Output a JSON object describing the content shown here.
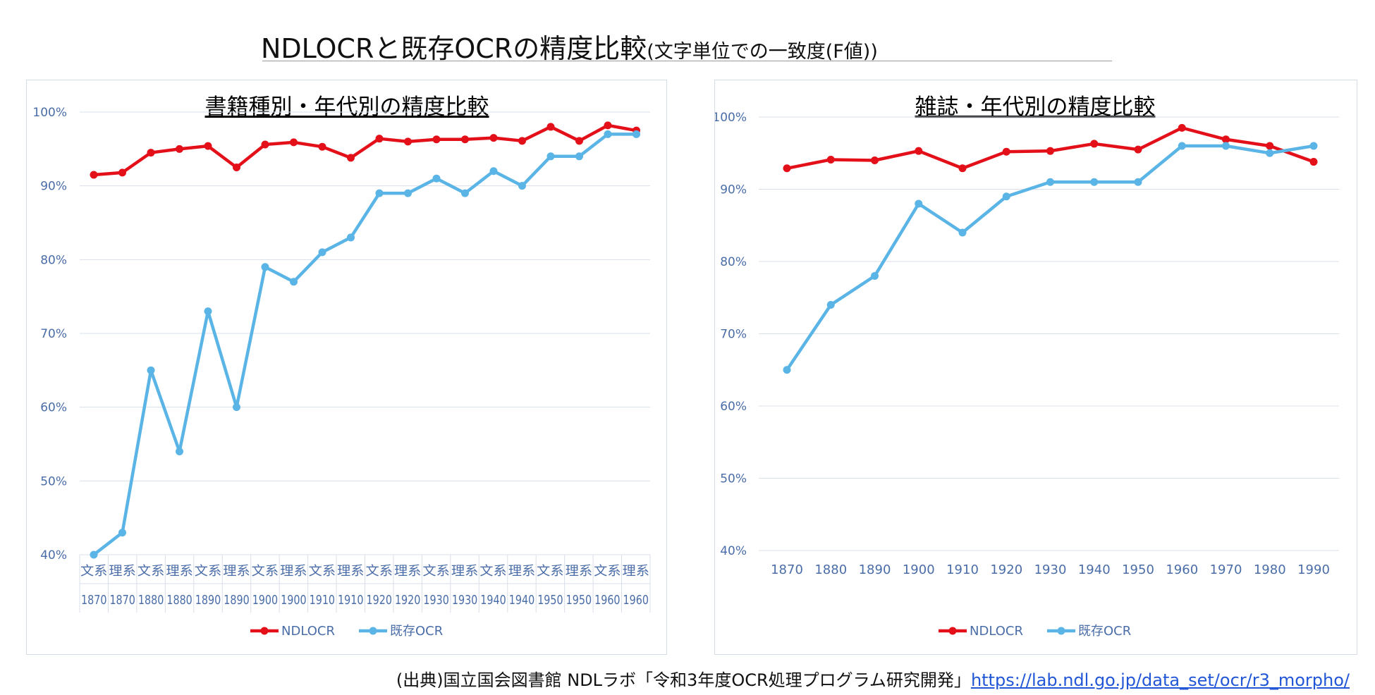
{
  "header": {
    "title_main": "NDLOCRと既存OCRの精度比較",
    "title_sub": "(文字単位での一致度(F値))"
  },
  "source": {
    "prefix": "(出典)国立国会図書館 NDLラボ「令和3年度OCR処理プログラム研究開発」",
    "link": "https://lab.ndl.go.jp/data_set/ocr/r3_morpho/"
  },
  "colors": {
    "ndlocr": "#e3101a",
    "existing": "#5ab4e5",
    "axis_text": "#4a6da8",
    "grid": "#d9dfe8"
  },
  "chart_data": [
    {
      "type": "line",
      "title": "書籍種別・年代別の精度比較",
      "categories": [
        [
          "文系",
          "1870"
        ],
        [
          "理系",
          "1870"
        ],
        [
          "文系",
          "1880"
        ],
        [
          "理系",
          "1880"
        ],
        [
          "文系",
          "1890"
        ],
        [
          "理系",
          "1890"
        ],
        [
          "文系",
          "1900"
        ],
        [
          "理系",
          "1900"
        ],
        [
          "文系",
          "1910"
        ],
        [
          "理系",
          "1910"
        ],
        [
          "文系",
          "1920"
        ],
        [
          "理系",
          "1920"
        ],
        [
          "文系",
          "1930"
        ],
        [
          "理系",
          "1930"
        ],
        [
          "文系",
          "1940"
        ],
        [
          "理系",
          "1940"
        ],
        [
          "文系",
          "1950"
        ],
        [
          "理系",
          "1950"
        ],
        [
          "文系",
          "1960"
        ],
        [
          "理系",
          "1960"
        ]
      ],
      "ylim": [
        40,
        100
      ],
      "yticks": [
        "40%",
        "50%",
        "60%",
        "70%",
        "80%",
        "90%",
        "100%"
      ],
      "grid": true,
      "legend_position": "bottom",
      "series": [
        {
          "name": "NDLOCR",
          "values": [
            91.5,
            91.8,
            94.5,
            95.0,
            95.4,
            92.5,
            95.6,
            95.9,
            95.3,
            93.8,
            96.4,
            96.0,
            96.3,
            96.3,
            96.5,
            96.1,
            98.0,
            96.1,
            98.2,
            97.5
          ]
        },
        {
          "name": "既存OCR",
          "values": [
            40,
            43,
            65,
            54,
            73,
            60,
            79,
            77,
            81,
            83,
            89,
            89,
            91,
            89,
            92,
            90,
            94,
            94,
            97,
            97
          ]
        }
      ]
    },
    {
      "type": "line",
      "title": "雑誌・年代別の精度比較",
      "categories": [
        "1870",
        "1880",
        "1890",
        "1900",
        "1910",
        "1920",
        "1930",
        "1940",
        "1950",
        "1960",
        "1970",
        "1980",
        "1990"
      ],
      "ylim": [
        40,
        100
      ],
      "yticks": [
        "40%",
        "50%",
        "60%",
        "70%",
        "80%",
        "90%",
        "100%"
      ],
      "grid": true,
      "legend_position": "bottom",
      "series": [
        {
          "name": "NDLOCR",
          "values": [
            92.9,
            94.1,
            94.0,
            95.3,
            92.9,
            95.2,
            95.3,
            96.3,
            95.5,
            98.5,
            96.9,
            96.0,
            93.8
          ]
        },
        {
          "name": "既存OCR",
          "values": [
            65,
            74,
            78,
            88,
            84,
            89,
            91,
            91,
            91,
            96,
            96,
            95,
            96
          ]
        }
      ]
    }
  ]
}
